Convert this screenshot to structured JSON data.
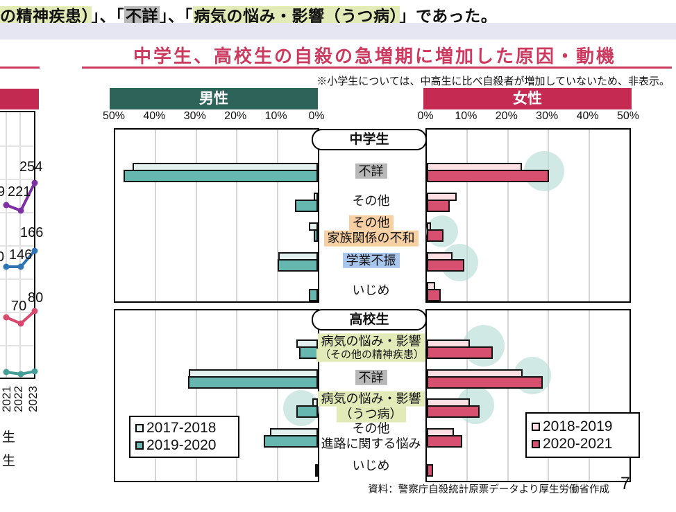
{
  "top_sentence": {
    "seg1": "の精神疾患）",
    "seg2": "」、「",
    "seg3": "不詳",
    "seg4": "」、「",
    "seg5": "病気の悩み・影響（うつ病）",
    "seg6": "」であった。"
  },
  "title": "中学生、高校生の自殺の急増期に増加した原因・動機",
  "note": "※小学生については、中高生に比べ自殺者が増加していないため、非表示。",
  "source": "資料：警察庁自殺統計原票データより厚生労働省作成",
  "page_number": "7",
  "headers": {
    "male": "男性",
    "female": "女性"
  },
  "axis": {
    "male_ticks": [
      "50%",
      "40%",
      "30%",
      "20%",
      "10%",
      "0%"
    ],
    "female_ticks": [
      "0%",
      "10%",
      "20%",
      "30%",
      "40%",
      "50%"
    ]
  },
  "legend": {
    "male": [
      "2017-2018",
      "2019-2020"
    ],
    "female": [
      "2018-2019",
      "2020-2021"
    ]
  },
  "sections": [
    {
      "label": "中学生",
      "categories": [
        {
          "lines": [
            {
              "text": "不詳",
              "hl": "gray"
            }
          ]
        },
        {
          "lines": [
            {
              "text": "その他",
              "hl": "none"
            }
          ]
        },
        {
          "lines": [
            {
              "text": "その他",
              "hl": "orange"
            },
            {
              "text": "家族関係の不和",
              "hl": "orange"
            }
          ]
        },
        {
          "lines": [
            {
              "text": "学業不振",
              "hl": "blue"
            }
          ]
        },
        {
          "lines": [
            {
              "text": "いじめ",
              "hl": "none"
            }
          ]
        }
      ]
    },
    {
      "label": "高校生",
      "categories": [
        {
          "lines": [
            {
              "text": "病気の悩み・影響",
              "hl": "green"
            },
            {
              "text": "（その他の精神疾患）",
              "hl": "green",
              "small": true
            }
          ]
        },
        {
          "lines": [
            {
              "text": "不詳",
              "hl": "gray"
            }
          ]
        },
        {
          "lines": [
            {
              "text": "病気の悩み・影響",
              "hl": "green"
            },
            {
              "text": "（うつ病）",
              "hl": "green"
            }
          ]
        },
        {
          "lines": [
            {
              "text": "その他",
              "hl": "none"
            },
            {
              "text": "進路に関する悩み",
              "hl": "none"
            }
          ]
        },
        {
          "lines": [
            {
              "text": "いじめ",
              "hl": "none"
            }
          ]
        }
      ]
    }
  ],
  "chart_data": [
    {
      "type": "bar",
      "title": "中学生 男性",
      "unit": "%",
      "xlim": [
        0,
        50
      ],
      "axis_reversed": true,
      "categories": [
        "不詳",
        "その他",
        "その他家族関係の不和",
        "学業不振",
        "いじめ"
      ],
      "series": [
        {
          "name": "2017-2018",
          "values": [
            45.8,
            1.0,
            2.2,
            9.8,
            0
          ]
        },
        {
          "name": "2019-2020",
          "values": [
            47.9,
            5.7,
            1.0,
            9.9,
            2.3
          ]
        }
      ]
    },
    {
      "type": "bar",
      "title": "中学生 女性",
      "unit": "%",
      "xlim": [
        0,
        50
      ],
      "categories": [
        "不詳",
        "その他",
        "その他家族関係の不和",
        "学業不振",
        "いじめ"
      ],
      "series": [
        {
          "name": "2018-2019",
          "values": [
            23.4,
            7.4,
            1.1,
            6.3,
            2.0
          ]
        },
        {
          "name": "2020-2021",
          "values": [
            30.2,
            5.6,
            4.1,
            9.2,
            3.4
          ]
        }
      ]
    },
    {
      "type": "bar",
      "title": "高校生 男性",
      "unit": "%",
      "xlim": [
        0,
        50
      ],
      "axis_reversed": true,
      "categories": [
        "病気の悩み・影響（その他の精神疾患）",
        "不詳",
        "病気の悩み・影響（うつ病）",
        "その他進路に関する悩み",
        "いじめ"
      ],
      "series": [
        {
          "name": "2017-2018",
          "values": [
            5.3,
            31.9,
            1.3,
            11.9,
            0
          ]
        },
        {
          "name": "2019-2020",
          "values": [
            4.6,
            32.0,
            5.3,
            13.3,
            0.5
          ]
        }
      ]
    },
    {
      "type": "bar",
      "title": "高校生 女性",
      "unit": "%",
      "xlim": [
        0,
        50
      ],
      "categories": [
        "病気の悩み・影響（その他の精神疾患）",
        "不詳",
        "病気の悩み・影響（うつ病）",
        "その他進路に関する悩み",
        "いじめ"
      ],
      "series": [
        {
          "name": "2018-2019",
          "values": [
            10.7,
            23.7,
            10.7,
            6.7,
            0
          ]
        },
        {
          "name": "2020-2021",
          "values": [
            16.3,
            28.6,
            13.0,
            8.7,
            1.6
          ]
        }
      ]
    }
  ],
  "left_partial_chart": {
    "type": "line",
    "x_tick_labels": [
      "2021",
      "2022",
      "2023"
    ],
    "visible_point_labels": [
      "254",
      "221",
      "9",
      "166",
      "146",
      "0",
      "80",
      "70"
    ],
    "series": [
      {
        "name": "purple-series",
        "visible_values": {
          "2022": 221,
          "2023": 254
        }
      },
      {
        "name": "blue-series",
        "visible_values": {
          "2022": 146,
          "2023": 166
        }
      },
      {
        "name": "pink-series",
        "visible_values": {
          "2022": 70,
          "2023": 80
        }
      },
      {
        "name": "teal-series",
        "visible_values": {}
      }
    ],
    "legend_fragments": [
      "生",
      "生"
    ]
  },
  "colors": {
    "accent_crimson": "#cc3a5f",
    "male_header": "#2d6358",
    "female_header": "#c52a52",
    "bar_teal_dark": "#65b7b0",
    "bar_teal_light": "#e3f1ee",
    "bar_pink_dark": "#d7506f",
    "bar_pink_light": "#fcdee3",
    "highlight_green": "#e2eab8",
    "highlight_gray": "#b8b8b8",
    "highlight_orange": "#f6cfa2",
    "highlight_blue": "#a9c7ee",
    "highlight_circle_teal": "#b9ddd6",
    "line_purple": "#7d30a3",
    "line_blue": "#2f74b5",
    "line_pink": "#d64a6e",
    "line_teal": "#459e95",
    "band_lavender": "#e6e6f3"
  }
}
